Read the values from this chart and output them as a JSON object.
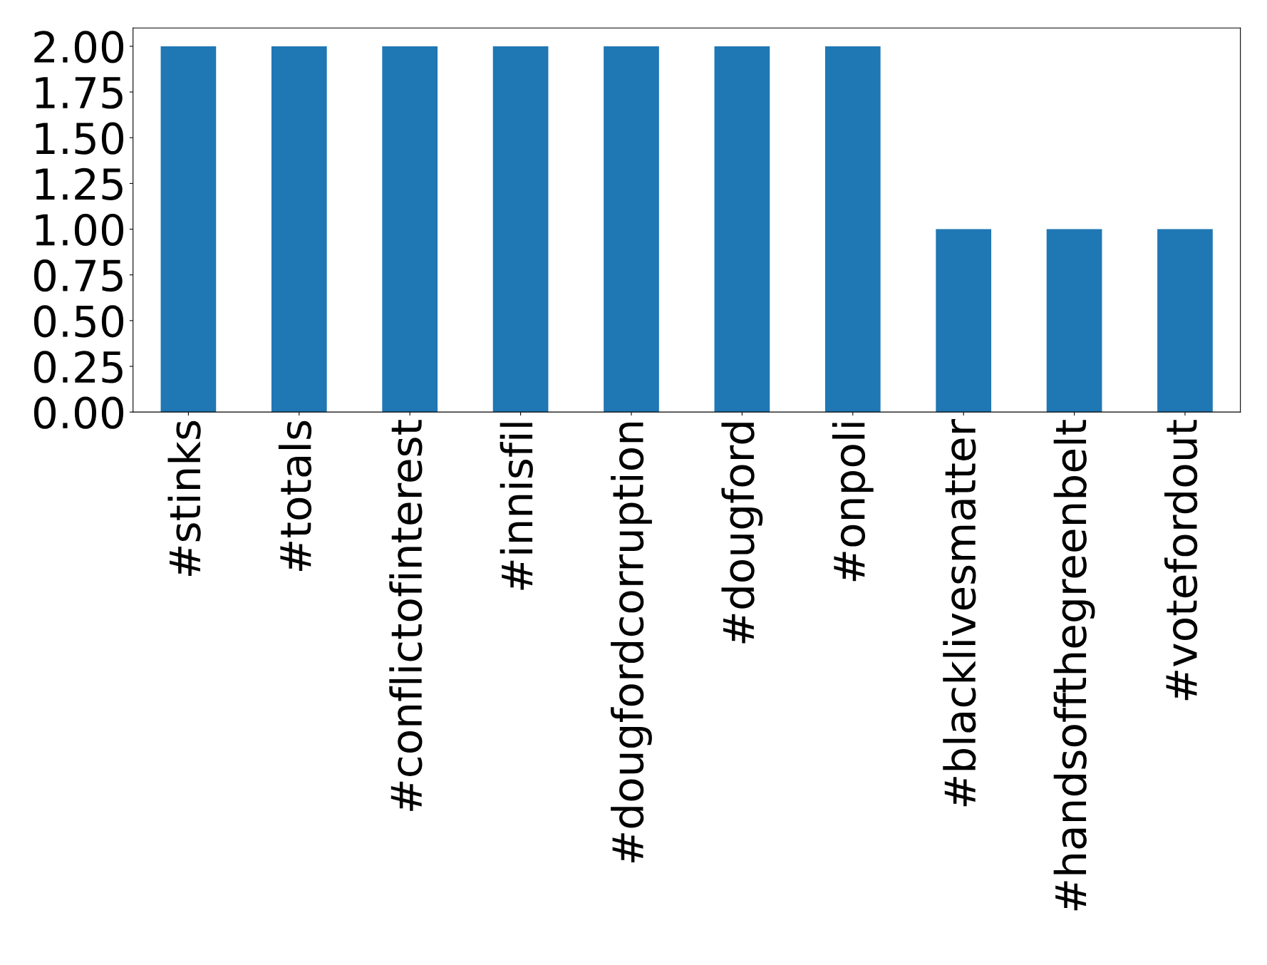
{
  "chart_data": {
    "type": "bar",
    "categories": [
      "#stinks",
      "#totals",
      "#conflictofinterest",
      "#innisfil",
      "#dougfordcorruption",
      "#dougford",
      "#onpoli",
      "#blacklivesmatter",
      "#handsoffthegreenbelt",
      "#votefordout"
    ],
    "values": [
      2,
      2,
      2,
      2,
      2,
      2,
      2,
      1,
      1,
      1
    ],
    "color": "#1f77b4",
    "ylim": [
      0,
      2.1
    ],
    "yticks": [
      {
        "value": 0,
        "label": "0.00"
      },
      {
        "value": 0.25,
        "label": "0.25"
      },
      {
        "value": 0.5,
        "label": "0.50"
      },
      {
        "value": 0.75,
        "label": "0.75"
      },
      {
        "value": 1,
        "label": "1.00"
      },
      {
        "value": 1.25,
        "label": "1.25"
      },
      {
        "value": 1.5,
        "label": "1.50"
      },
      {
        "value": 1.75,
        "label": "1.75"
      },
      {
        "value": 2,
        "label": "2.00"
      }
    ],
    "grid": false,
    "legend": false
  }
}
